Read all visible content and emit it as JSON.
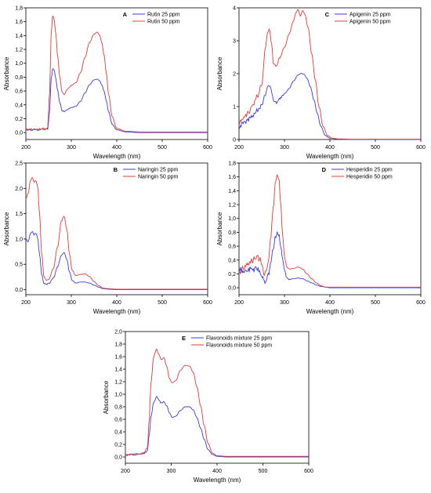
{
  "chart_data": [
    {
      "type": "line",
      "panel_letter": "A",
      "xlabel": "Wavelength (nm)",
      "ylabel": "Absorbance",
      "xlim": [
        200,
        600
      ],
      "ylim": [
        -0.1,
        1.8
      ],
      "xticks": [
        200,
        300,
        400,
        500,
        600
      ],
      "yticks": [
        0.0,
        0.2,
        0.4,
        0.6,
        0.8,
        1.0,
        1.2,
        1.4,
        1.6,
        1.8
      ],
      "ytick_labels": [
        "0,0",
        "0,2",
        "0,4",
        "0,6",
        "0,8",
        "1,0",
        "1,2",
        "1,4",
        "1,6",
        "1,8"
      ],
      "legend_position": "top-right",
      "noise": 0.012,
      "series": [
        {
          "name": "Rutin 25 ppm",
          "color": "#3b3bdd",
          "x": [
            200,
            220,
            240,
            248,
            252,
            256,
            259,
            262,
            266,
            270,
            275,
            280,
            285,
            290,
            300,
            310,
            320,
            330,
            340,
            350,
            357,
            362,
            367,
            372,
            377,
            382,
            390,
            400,
            420,
            450,
            500,
            550,
            600
          ],
          "y": [
            0.04,
            0.04,
            0.05,
            0.05,
            0.3,
            0.78,
            0.92,
            0.9,
            0.78,
            0.6,
            0.42,
            0.32,
            0.3,
            0.33,
            0.36,
            0.38,
            0.45,
            0.57,
            0.69,
            0.76,
            0.77,
            0.75,
            0.69,
            0.6,
            0.46,
            0.3,
            0.12,
            0.04,
            0.01,
            0.0,
            0.0,
            0.0,
            0.0
          ]
        },
        {
          "name": "Rutin 50 ppm",
          "color": "#e03c3c",
          "x": [
            200,
            220,
            240,
            248,
            252,
            256,
            259,
            262,
            266,
            270,
            275,
            280,
            285,
            290,
            300,
            310,
            320,
            330,
            340,
            350,
            357,
            362,
            367,
            372,
            377,
            382,
            390,
            400,
            420,
            450,
            500,
            550,
            600
          ],
          "y": [
            0.05,
            0.05,
            0.06,
            0.06,
            0.55,
            1.45,
            1.68,
            1.64,
            1.42,
            1.1,
            0.78,
            0.58,
            0.55,
            0.62,
            0.68,
            0.72,
            0.86,
            1.08,
            1.3,
            1.42,
            1.45,
            1.41,
            1.3,
            1.12,
            0.86,
            0.55,
            0.23,
            0.06,
            0.02,
            0.01,
            0.01,
            0.01,
            0.01
          ]
        }
      ]
    },
    {
      "type": "line",
      "panel_letter": "C",
      "xlabel": "Wavelength (nm)",
      "ylabel": "Absorbance",
      "xlim": [
        200,
        600
      ],
      "ylim": [
        0,
        4
      ],
      "xticks": [
        200,
        300,
        400,
        500,
        600
      ],
      "yticks": [
        0,
        1,
        2,
        3,
        4
      ],
      "ytick_labels": [
        "0",
        "1",
        "2",
        "3",
        "4"
      ],
      "legend_position": "top-right",
      "noise": 0.07,
      "series": [
        {
          "name": "Apigenin 25 ppm",
          "color": "#3b3bdd",
          "x": [
            200,
            210,
            220,
            230,
            240,
            250,
            258,
            263,
            267,
            271,
            276,
            282,
            290,
            300,
            310,
            320,
            330,
            337,
            343,
            350,
            357,
            365,
            372,
            380,
            390,
            400,
            420,
            450,
            500,
            550,
            600
          ],
          "y": [
            0.4,
            0.5,
            0.6,
            0.75,
            0.9,
            1.05,
            1.4,
            1.62,
            1.65,
            1.5,
            1.15,
            1.12,
            1.25,
            1.38,
            1.55,
            1.78,
            1.96,
            2.01,
            1.98,
            1.85,
            1.6,
            1.2,
            0.8,
            0.4,
            0.12,
            0.04,
            0.01,
            0.0,
            0.0,
            0.0,
            0.0
          ]
        },
        {
          "name": "Apigenin 50 ppm",
          "color": "#e03c3c",
          "x": [
            200,
            210,
            220,
            230,
            240,
            250,
            258,
            263,
            267,
            271,
            276,
            282,
            290,
            300,
            310,
            320,
            325,
            330,
            335,
            340,
            345,
            352,
            360,
            368,
            376,
            385,
            395,
            405,
            420,
            450,
            500,
            550,
            600
          ],
          "y": [
            0.5,
            0.65,
            0.8,
            1.0,
            1.3,
            1.7,
            2.8,
            3.3,
            3.35,
            3.0,
            2.3,
            2.25,
            2.5,
            2.8,
            3.2,
            3.6,
            3.85,
            3.95,
            3.75,
            3.92,
            3.8,
            3.4,
            2.6,
            1.8,
            1.0,
            0.4,
            0.12,
            0.04,
            0.02,
            0.01,
            0.01,
            0.01,
            0.01
          ]
        }
      ]
    },
    {
      "type": "line",
      "panel_letter": "B",
      "xlabel": "Wavelength (nm)",
      "ylabel": "Absorbance",
      "xlim": [
        200,
        600
      ],
      "ylim": [
        -0.1,
        2.5
      ],
      "xticks": [
        200,
        300,
        400,
        500,
        600
      ],
      "yticks": [
        0.0,
        0.5,
        1.0,
        1.5,
        2.0,
        2.5
      ],
      "ytick_labels": [
        "0,0",
        "0,5",
        "1,0",
        "1,5",
        "2,0",
        "2,5"
      ],
      "legend_position": "top-right",
      "noise": 0.01,
      "series": [
        {
          "name": "Naringin 25 ppm",
          "color": "#3b3bdd",
          "x": [
            200,
            205,
            210,
            214,
            218,
            222,
            226,
            230,
            235,
            240,
            245,
            250,
            260,
            270,
            278,
            284,
            290,
            296,
            302,
            310,
            320,
            330,
            340,
            350,
            360,
            370,
            380,
            400,
            450,
            500,
            550,
            600
          ],
          "y": [
            1.0,
            0.95,
            1.1,
            1.15,
            1.08,
            1.12,
            1.02,
            0.7,
            0.3,
            0.12,
            0.1,
            0.12,
            0.22,
            0.45,
            0.68,
            0.73,
            0.6,
            0.35,
            0.18,
            0.13,
            0.15,
            0.15,
            0.13,
            0.09,
            0.05,
            0.02,
            0.01,
            0.0,
            0.0,
            0.0,
            0.0,
            0.0
          ]
        },
        {
          "name": "Naringin 50 ppm",
          "color": "#e03c3c",
          "x": [
            200,
            205,
            210,
            214,
            218,
            222,
            226,
            230,
            235,
            240,
            245,
            250,
            260,
            270,
            278,
            284,
            290,
            296,
            302,
            310,
            320,
            330,
            340,
            350,
            360,
            370,
            380,
            400,
            450,
            500,
            550,
            600
          ],
          "y": [
            1.8,
            1.9,
            2.15,
            2.22,
            2.12,
            2.15,
            2.05,
            1.5,
            0.7,
            0.25,
            0.18,
            0.2,
            0.4,
            0.85,
            1.35,
            1.45,
            1.2,
            0.7,
            0.38,
            0.28,
            0.3,
            0.31,
            0.26,
            0.16,
            0.08,
            0.03,
            0.02,
            0.01,
            0.01,
            0.01,
            0.01,
            0.01
          ]
        }
      ]
    },
    {
      "type": "line",
      "panel_letter": "D",
      "xlabel": "Wavelength (nm)",
      "ylabel": "Absorbance",
      "xlim": [
        200,
        600
      ],
      "ylim": [
        -0.1,
        1.8
      ],
      "xticks": [
        200,
        300,
        400,
        500,
        600
      ],
      "yticks": [
        0.0,
        0.2,
        0.4,
        0.6,
        0.8,
        1.0,
        1.2,
        1.4,
        1.6,
        1.8
      ],
      "ytick_labels": [
        "0,0",
        "0,2",
        "0,4",
        "0,6",
        "0,8",
        "1,0",
        "1,2",
        "1,4",
        "1,6",
        "1,8"
      ],
      "legend_position": "top-right",
      "noise": 0.045,
      "series": [
        {
          "name": "Hesperidin 25 ppm",
          "color": "#3b3bdd",
          "x": [
            200,
            210,
            220,
            230,
            240,
            245,
            250,
            255,
            260,
            265,
            270,
            275,
            280,
            284,
            288,
            292,
            296,
            300,
            305,
            310,
            320,
            330,
            340,
            350,
            360,
            370,
            380,
            390,
            400,
            450,
            500,
            550,
            600
          ],
          "y": [
            0.25,
            0.25,
            0.26,
            0.26,
            0.27,
            0.25,
            0.18,
            0.1,
            0.12,
            0.2,
            0.35,
            0.55,
            0.72,
            0.79,
            0.75,
            0.6,
            0.4,
            0.25,
            0.15,
            0.12,
            0.13,
            0.14,
            0.13,
            0.1,
            0.07,
            0.04,
            0.02,
            0.01,
            0.0,
            0.0,
            0.0,
            0.0,
            0.0
          ]
        },
        {
          "name": "Hesperidin 50 ppm",
          "color": "#e03c3c",
          "x": [
            200,
            210,
            220,
            230,
            240,
            245,
            250,
            255,
            260,
            265,
            270,
            275,
            280,
            284,
            288,
            292,
            296,
            300,
            305,
            310,
            320,
            330,
            340,
            350,
            360,
            370,
            380,
            390,
            400,
            450,
            500,
            550,
            600
          ],
          "y": [
            0.2,
            0.3,
            0.35,
            0.4,
            0.45,
            0.42,
            0.3,
            0.22,
            0.25,
            0.4,
            0.75,
            1.15,
            1.5,
            1.63,
            1.55,
            1.2,
            0.75,
            0.45,
            0.3,
            0.27,
            0.28,
            0.3,
            0.27,
            0.2,
            0.13,
            0.07,
            0.03,
            0.01,
            0.01,
            0.01,
            0.01,
            0.01,
            0.01
          ]
        }
      ]
    },
    {
      "type": "line",
      "panel_letter": "E",
      "xlabel": "Wavelength (nm)",
      "ylabel": "Absorbance",
      "xlim": [
        200,
        600
      ],
      "ylim": [
        -0.1,
        2.0
      ],
      "xticks": [
        200,
        300,
        400,
        500,
        600
      ],
      "yticks": [
        0.0,
        0.2,
        0.4,
        0.6,
        0.8,
        1.0,
        1.2,
        1.4,
        1.6,
        1.8,
        2.0
      ],
      "ytick_labels": [
        "0,0",
        "0,2",
        "0,4",
        "0,6",
        "0,8",
        "1,0",
        "1,2",
        "1,4",
        "1,6",
        "1,8",
        "2,0"
      ],
      "legend_position": "top-right",
      "noise": 0.012,
      "series": [
        {
          "name": "Flavonoids mixture 25 ppm",
          "color": "#3b3bdd",
          "x": [
            200,
            220,
            240,
            248,
            252,
            256,
            262,
            268,
            272,
            278,
            284,
            290,
            296,
            302,
            310,
            320,
            330,
            340,
            348,
            356,
            364,
            372,
            380,
            390,
            400,
            420,
            450,
            500,
            550,
            600
          ],
          "y": [
            0.03,
            0.04,
            0.05,
            0.1,
            0.35,
            0.65,
            0.88,
            0.96,
            0.92,
            0.86,
            0.88,
            0.82,
            0.7,
            0.63,
            0.65,
            0.74,
            0.8,
            0.8,
            0.75,
            0.63,
            0.46,
            0.28,
            0.12,
            0.04,
            0.01,
            0.0,
            0.0,
            0.0,
            0.0,
            0.0
          ]
        },
        {
          "name": "Flavonoids mixture 50 ppm",
          "color": "#e03c3c",
          "x": [
            200,
            220,
            240,
            248,
            252,
            256,
            262,
            268,
            272,
            278,
            284,
            290,
            296,
            302,
            310,
            320,
            330,
            340,
            348,
            356,
            364,
            372,
            380,
            390,
            400,
            420,
            450,
            500,
            550,
            600
          ],
          "y": [
            0.04,
            0.05,
            0.06,
            0.15,
            0.6,
            1.2,
            1.6,
            1.72,
            1.65,
            1.55,
            1.58,
            1.45,
            1.25,
            1.18,
            1.22,
            1.38,
            1.46,
            1.45,
            1.35,
            1.12,
            0.82,
            0.5,
            0.22,
            0.06,
            0.02,
            0.01,
            0.01,
            0.01,
            0.01,
            0.01
          ]
        }
      ]
    }
  ]
}
